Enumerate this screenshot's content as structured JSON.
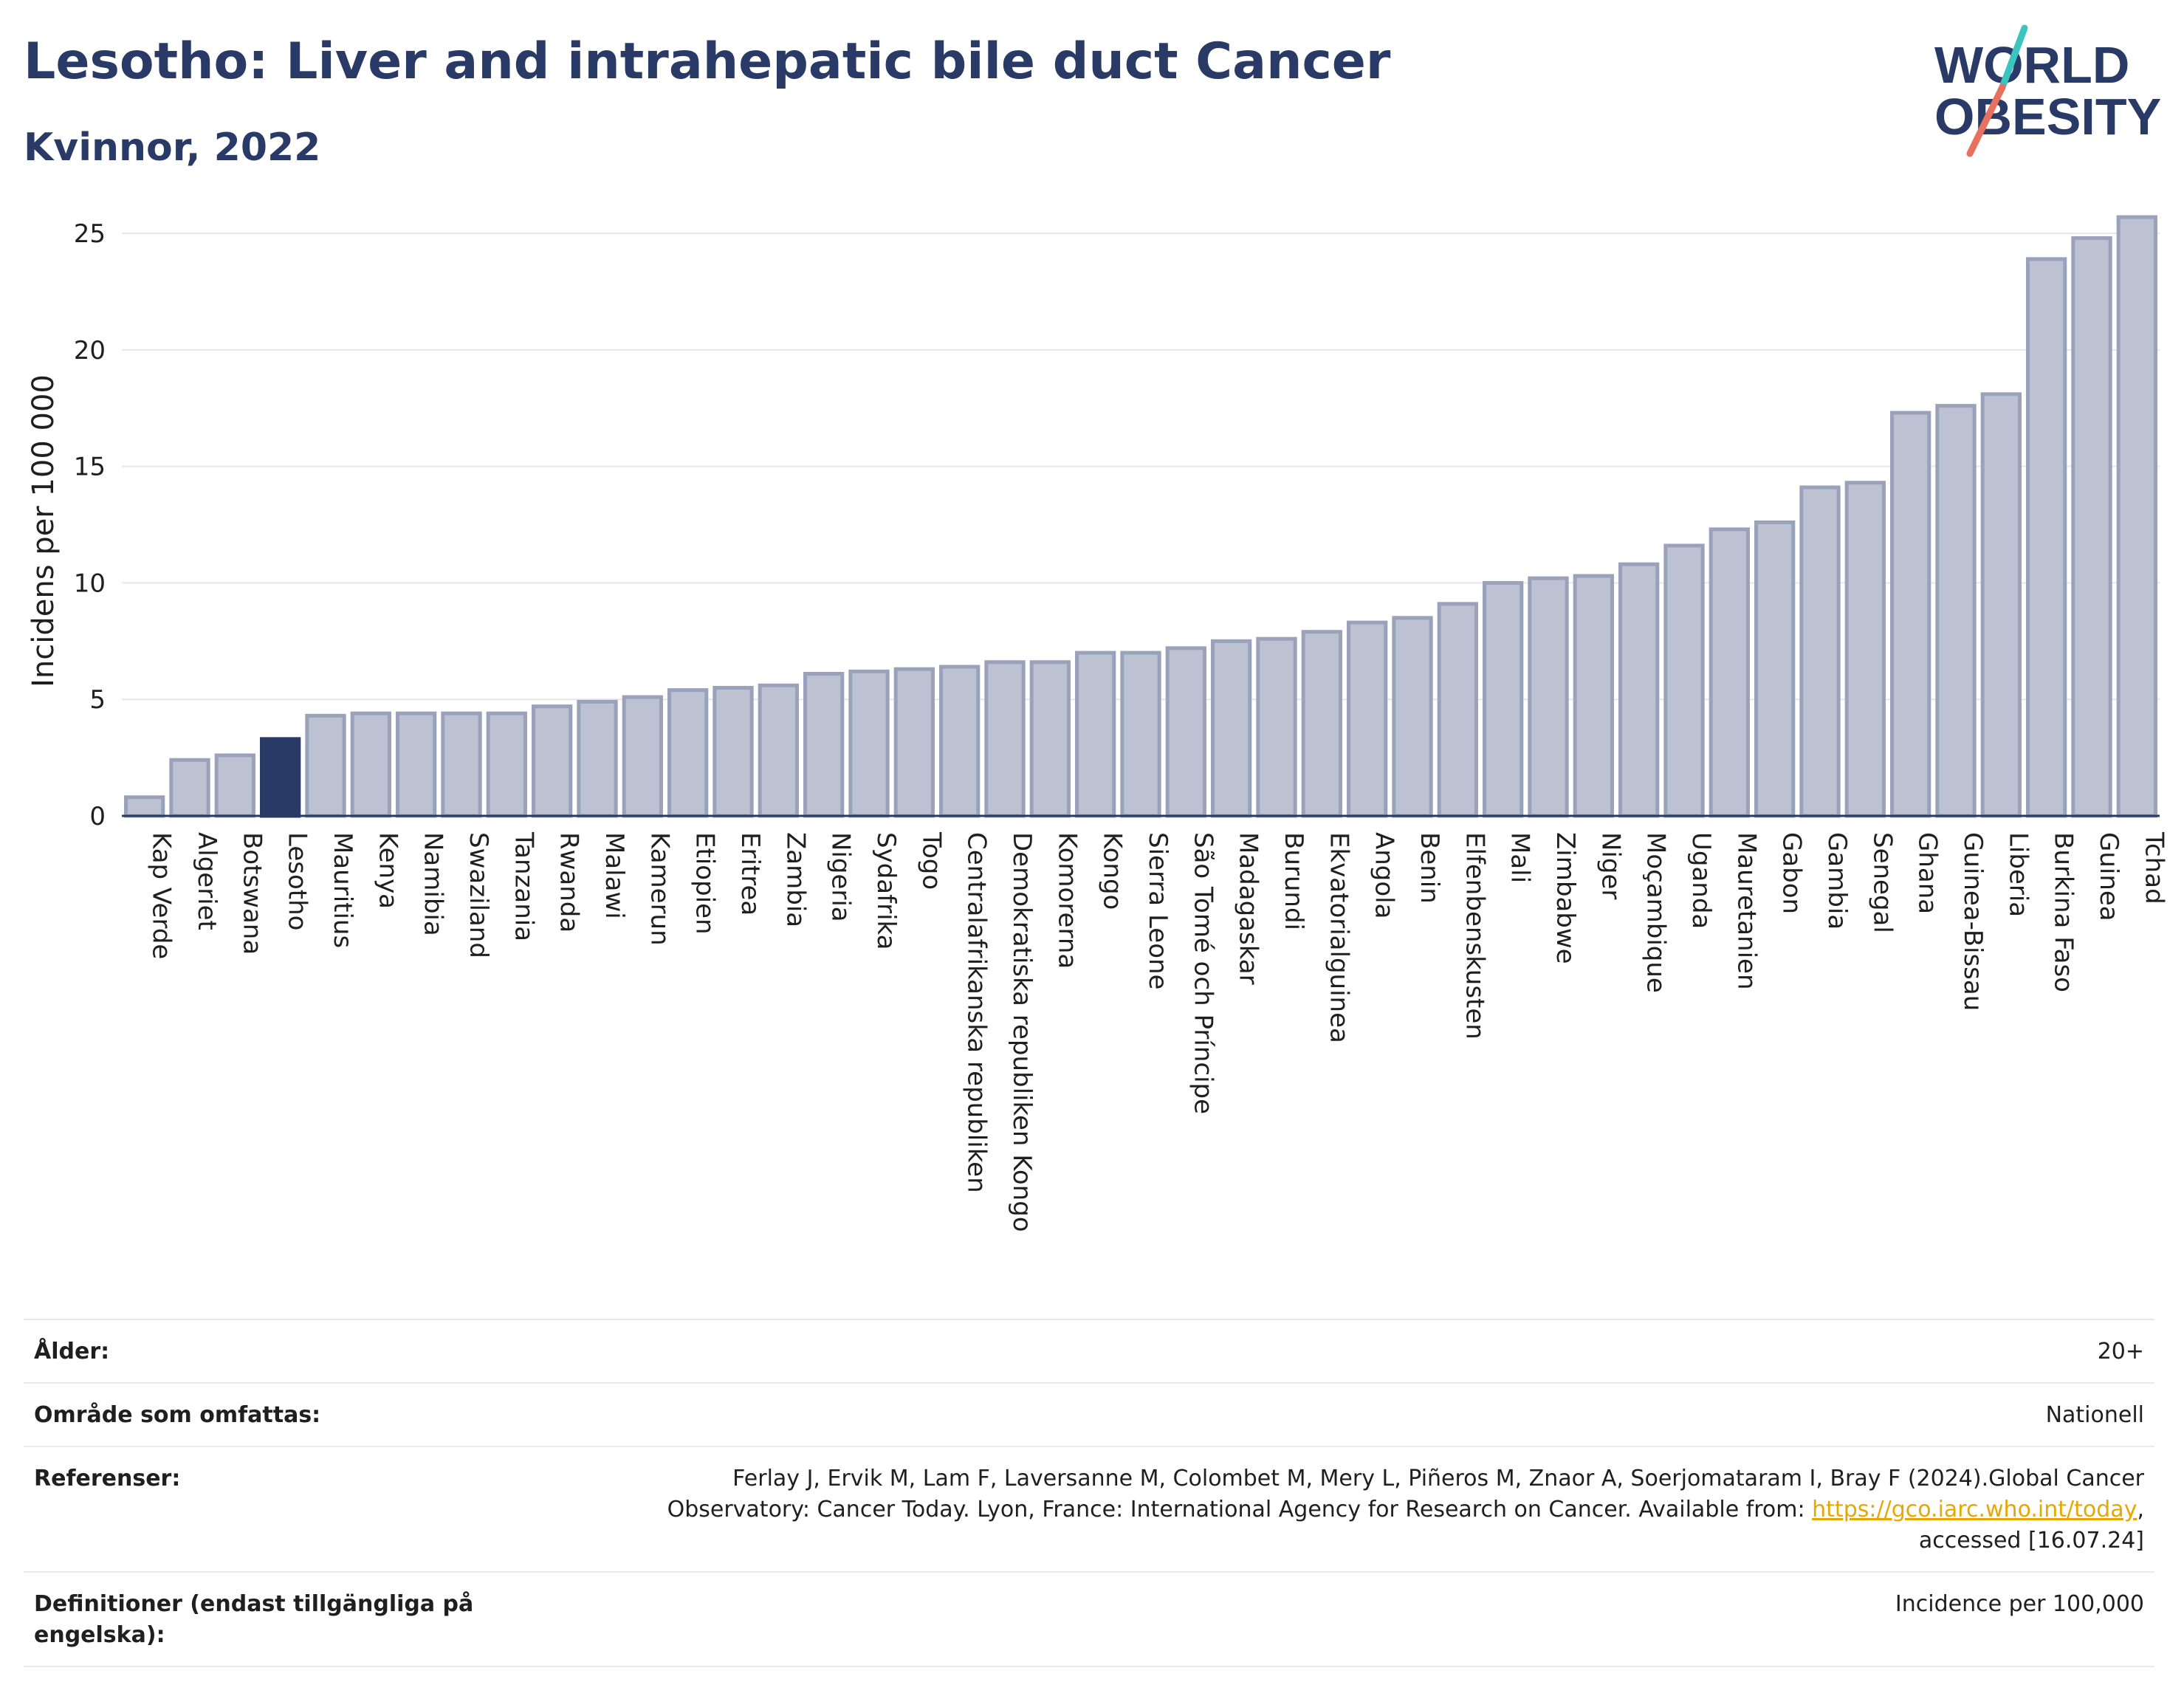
{
  "title": "Lesotho: Liver and intrahepatic bile duct Cancer",
  "subtitle": "Kvinnor, 2022",
  "logo": {
    "line1": "WORLD",
    "line2": "OBESITY",
    "colors": {
      "text": "#2a3a66",
      "slash_teal": "#3cc4c0",
      "slash_coral": "#e8705e"
    }
  },
  "colors": {
    "bar": "#bcc2d2",
    "bar_border": "#9aa1bb",
    "highlight": "#2a3a66",
    "axis": "#2a3a66",
    "grid": "#e6e6ec"
  },
  "chart_data": {
    "type": "bar",
    "title": "Lesotho: Liver and intrahepatic bile duct Cancer",
    "subtitle": "Kvinnor, 2022",
    "ylabel": "Incidens per 100 000",
    "xlabel": "",
    "ylim": [
      0,
      27
    ],
    "yticks": [
      0,
      5,
      10,
      15,
      20,
      25
    ],
    "grid": true,
    "highlight": "Lesotho",
    "categories": [
      "Kap Verde",
      "Algeriet",
      "Botswana",
      "Lesotho",
      "Mauritius",
      "Kenya",
      "Namibia",
      "Swaziland",
      "Tanzania",
      "Rwanda",
      "Malawi",
      "Kamerun",
      "Etiopien",
      "Eritrea",
      "Zambia",
      "Nigeria",
      "Sydafrika",
      "Togo",
      "Centralafrikanska republiken",
      "Demokratiska republiken Kongo",
      "Komorerna",
      "Kongo",
      "Sierra Leone",
      "São Tomé och Príncipe",
      "Madagaskar",
      "Burundi",
      "Ekvatorialguinea",
      "Angola",
      "Benin",
      "Elfenbenskusten",
      "Mali",
      "Zimbabwe",
      "Niger",
      "Moçambique",
      "Uganda",
      "Mauretanien",
      "Gabon",
      "Gambia",
      "Senegal",
      "Ghana",
      "Guinea-Bissau",
      "Liberia",
      "Burkina Faso",
      "Guinea",
      "Tchad"
    ],
    "values": [
      0.8,
      2.4,
      2.6,
      3.3,
      4.3,
      4.4,
      4.4,
      4.4,
      4.4,
      4.7,
      4.9,
      5.1,
      5.4,
      5.5,
      5.6,
      6.1,
      6.2,
      6.3,
      6.4,
      6.6,
      6.6,
      7.0,
      7.0,
      7.2,
      7.5,
      7.6,
      7.9,
      8.3,
      8.5,
      9.1,
      10.0,
      10.2,
      10.3,
      10.8,
      11.6,
      12.3,
      12.6,
      14.1,
      14.3,
      17.3,
      17.6,
      18.1,
      23.9,
      24.8,
      25.7
    ]
  },
  "meta": [
    {
      "key": "Ålder:",
      "value": "20+"
    },
    {
      "key": "Område som omfattas:",
      "value": "Nationell"
    },
    {
      "key": "Referenser:",
      "value_before": "Ferlay J, Ervik M, Lam F, Laversanne M, Colombet M, Mery L, Piñeros M, Znaor A, Soerjomataram I, Bray F (2024).Global Cancer Observatory: Cancer Today. Lyon, France: International Agency for Research on Cancer. Available from: ",
      "link": "https://gco.iarc.who.int/today",
      "value_after": ", accessed [16.07.24]"
    },
    {
      "key": "Definitioner (endast tillgängliga på engelska):",
      "value": "Incidence per 100,000"
    }
  ]
}
